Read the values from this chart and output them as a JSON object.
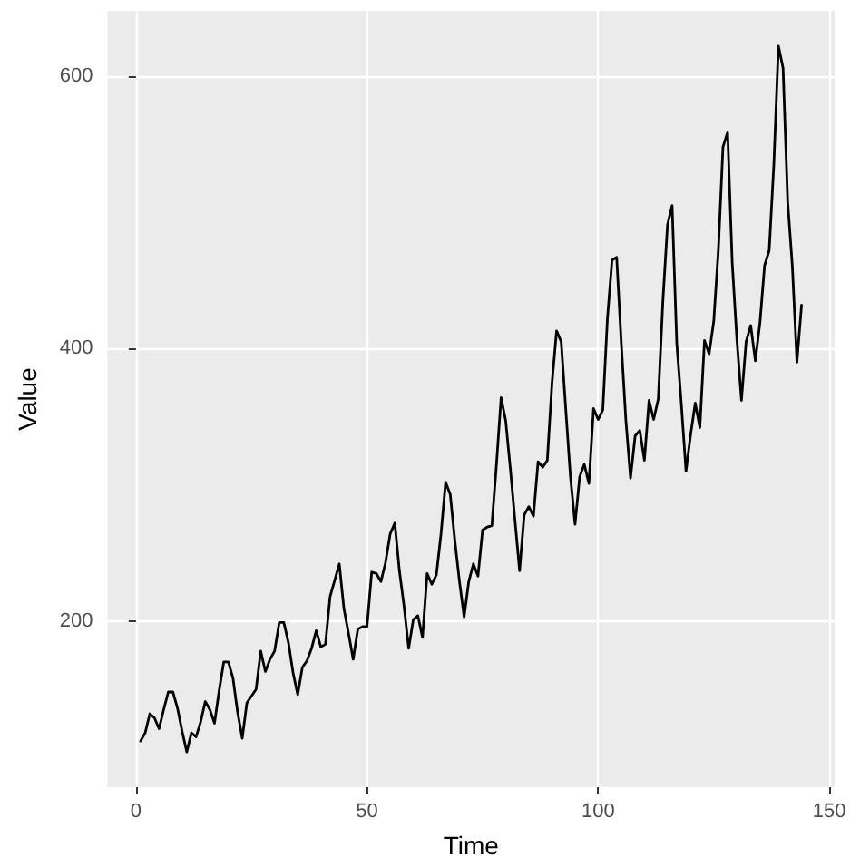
{
  "chart_data": {
    "type": "line",
    "xlabel": "Time",
    "ylabel": "Value",
    "x": [
      1,
      2,
      3,
      4,
      5,
      6,
      7,
      8,
      9,
      10,
      11,
      12,
      13,
      14,
      15,
      16,
      17,
      18,
      19,
      20,
      21,
      22,
      23,
      24,
      25,
      26,
      27,
      28,
      29,
      30,
      31,
      32,
      33,
      34,
      35,
      36,
      37,
      38,
      39,
      40,
      41,
      42,
      43,
      44,
      45,
      46,
      47,
      48,
      49,
      50,
      51,
      52,
      53,
      54,
      55,
      56,
      57,
      58,
      59,
      60,
      61,
      62,
      63,
      64,
      65,
      66,
      67,
      68,
      69,
      70,
      71,
      72,
      73,
      74,
      75,
      76,
      77,
      78,
      79,
      80,
      81,
      82,
      83,
      84,
      85,
      86,
      87,
      88,
      89,
      90,
      91,
      92,
      93,
      94,
      95,
      96,
      97,
      98,
      99,
      100,
      101,
      102,
      103,
      104,
      105,
      106,
      107,
      108,
      109,
      110,
      111,
      112,
      113,
      114,
      115,
      116,
      117,
      118,
      119,
      120,
      121,
      122,
      123,
      124,
      125,
      126,
      127,
      128,
      129,
      130,
      131,
      132,
      133,
      134,
      135,
      136,
      137,
      138,
      139,
      140,
      141,
      142,
      143,
      144
    ],
    "series": [
      {
        "color": "#000000",
        "values": [
          112,
          118,
          132,
          129,
          121,
          135,
          148,
          148,
          136,
          119,
          104,
          118,
          115,
          126,
          141,
          135,
          125,
          149,
          170,
          170,
          158,
          133,
          114,
          140,
          145,
          150,
          178,
          163,
          172,
          178,
          199,
          199,
          184,
          162,
          146,
          166,
          171,
          180,
          193,
          181,
          183,
          218,
          230,
          242,
          209,
          191,
          172,
          194,
          196,
          196,
          236,
          235,
          229,
          243,
          264,
          272,
          237,
          211,
          180,
          201,
          204,
          188,
          235,
          227,
          234,
          264,
          302,
          293,
          259,
          229,
          203,
          229,
          242,
          233,
          267,
          269,
          270,
          315,
          364,
          347,
          312,
          274,
          237,
          278,
          284,
          277,
          317,
          313,
          318,
          374,
          413,
          405,
          355,
          306,
          271,
          306,
          315,
          301,
          356,
          348,
          355,
          422,
          465,
          467,
          404,
          347,
          305,
          336,
          340,
          318,
          362,
          348,
          363,
          435,
          491,
          505,
          404,
          359,
          310,
          337,
          360,
          342,
          406,
          396,
          420,
          472,
          548,
          559,
          463,
          407,
          362,
          405,
          417,
          391,
          419,
          461,
          472,
          535,
          622,
          606,
          508,
          461,
          390,
          432
        ]
      }
    ],
    "xlim": [
      -6.15,
      151.15
    ],
    "xticks": [
      0,
      50,
      100,
      150
    ],
    "ylim": [
      78.1,
      647.9
    ],
    "yticks": [
      200,
      400,
      600
    ],
    "grid": true,
    "marker": "none",
    "line_style": "solid"
  }
}
